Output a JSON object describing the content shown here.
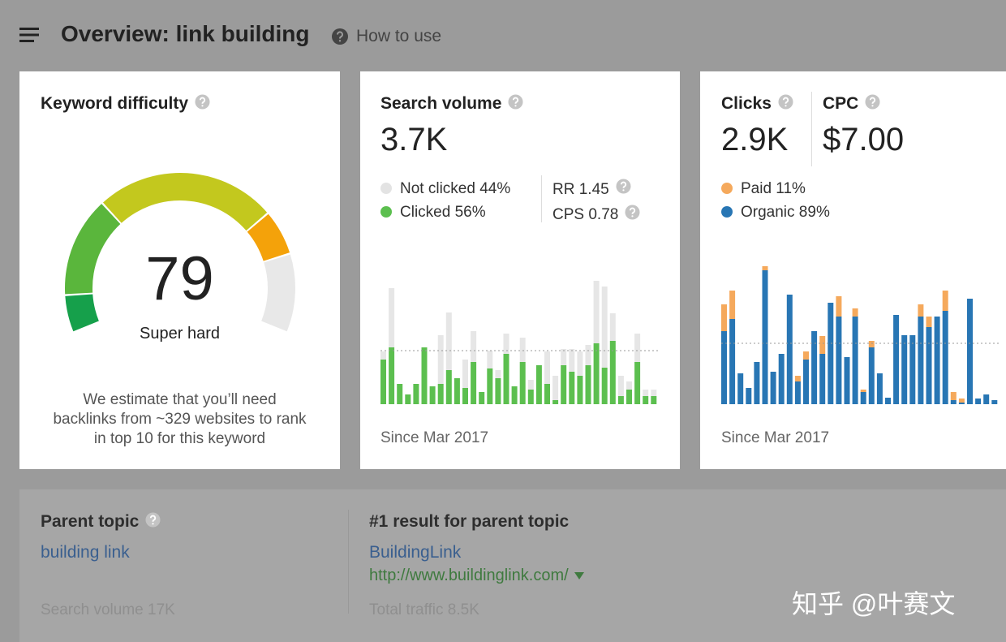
{
  "header": {
    "title": "Overview: link building",
    "help": "How to use"
  },
  "keyword_difficulty": {
    "title": "Keyword difficulty",
    "value": "79",
    "label": "Super hard",
    "description": "We estimate that you’ll need backlinks from ~329 websites to rank in top 10 for this keyword"
  },
  "search_volume": {
    "title": "Search volume",
    "value": "3.7K",
    "legend": [
      {
        "label": "Not clicked 44%",
        "color": "#e3e3e3"
      },
      {
        "label": "Clicked 56%",
        "color": "#5cbf4f"
      }
    ],
    "metrics": [
      "RR 1.45",
      "CPS 0.78"
    ],
    "chart": {
      "type": "bar",
      "stacked": true,
      "average": 66,
      "series": [
        {
          "color": "#5cbf4f",
          "values": [
            55,
            70,
            25,
            12,
            25,
            70,
            22,
            25,
            42,
            32,
            20,
            52,
            15,
            44,
            32,
            62,
            22,
            52,
            18,
            48,
            25,
            5,
            48,
            40,
            35,
            48,
            75,
            45,
            78,
            10,
            18,
            52,
            10,
            10
          ]
        },
        {
          "color": "#e6e6e6",
          "values": [
            10,
            73,
            0,
            0,
            0,
            0,
            0,
            60,
            71,
            0,
            35,
            38,
            0,
            22,
            10,
            25,
            0,
            30,
            12,
            0,
            40,
            30,
            20,
            28,
            30,
            25,
            77,
            100,
            34,
            25,
            10,
            35,
            8,
            8
          ]
        }
      ]
    },
    "since": "Since Mar 2017"
  },
  "clicks": {
    "title": "Clicks",
    "value": "2.9K",
    "legend": [
      {
        "label": "Paid 11%",
        "color": "#f5a95c"
      },
      {
        "label": "Organic 89%",
        "color": "#2876b4"
      }
    ],
    "chart": {
      "type": "bar",
      "stacked": true,
      "average": 75,
      "series": [
        {
          "color": "#2876b4",
          "values": [
            90,
            105,
            38,
            20,
            52,
            165,
            40,
            62,
            135,
            28,
            55,
            90,
            62,
            125,
            108,
            58,
            108,
            15,
            70,
            38,
            8,
            110,
            85,
            85,
            108,
            95,
            108,
            115,
            5,
            2,
            130,
            7,
            12,
            5
          ]
        },
        {
          "color": "#f5a95c",
          "values": [
            33,
            35,
            0,
            0,
            0,
            8,
            0,
            0,
            0,
            7,
            10,
            0,
            22,
            0,
            25,
            0,
            10,
            3,
            8,
            0,
            0,
            0,
            0,
            0,
            15,
            13,
            0,
            25,
            10,
            5,
            0,
            0,
            0,
            0
          ]
        }
      ]
    },
    "since": "Since Mar 2017"
  },
  "cpc": {
    "title": "CPC",
    "value": "$7.00"
  },
  "parent_topic": {
    "title": "Parent topic",
    "link": "building link",
    "meta": "Search volume 17K"
  },
  "top_result": {
    "title": "#1 result for parent topic",
    "name": "BuildingLink",
    "url": "http://www.buildinglink.com/",
    "meta": "Total traffic 8.5K"
  },
  "watermark": "知乎 @叶赛文"
}
